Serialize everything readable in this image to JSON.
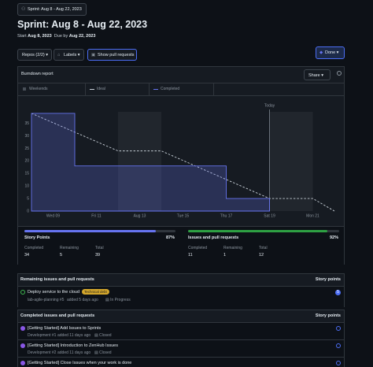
{
  "header": {
    "sprint_button": "Sprint: Aug 8 - Aug 22, 2023",
    "title": "Sprint: Aug 8 - Aug 22, 2023",
    "start_label": "Start",
    "start_date": "Aug 8, 2023",
    "due_label": "Due by",
    "due_date": "Aug 22, 2023"
  },
  "filters": [
    "Repos (2/2)",
    "Labels",
    "Show pull requests"
  ],
  "status_button": "Done",
  "report": {
    "title": "Burndown report",
    "share": "Share"
  },
  "chart_data": {
    "type": "line",
    "weekends": {
      "name": "Weekends",
      "color": "#21262d",
      "ranges": [
        [
          12,
          14
        ],
        [
          19,
          21
        ]
      ]
    },
    "today": {
      "label": "Today",
      "x": 19
    },
    "series": [
      {
        "name": "Ideal",
        "color": "#c9d1d9",
        "dashed": true,
        "x": [
          8,
          12,
          14,
          19,
          21,
          22
        ],
        "values": [
          39,
          24,
          24,
          5,
          5,
          0
        ]
      },
      {
        "name": "Completed",
        "color": "#6674f0",
        "area": true,
        "x": [
          8,
          10,
          10,
          17,
          17,
          19
        ],
        "values": [
          39,
          39,
          18,
          18,
          5,
          5
        ]
      }
    ],
    "xlim": [
      8,
      22
    ],
    "xticks": [
      {
        "value": 9,
        "label": "Wed 09"
      },
      {
        "value": 11,
        "label": "Fri 11"
      },
      {
        "value": 13,
        "label": "Aug 13"
      },
      {
        "value": 15,
        "label": "Tue 15"
      },
      {
        "value": 17,
        "label": "Thu 17"
      },
      {
        "value": 19,
        "label": "Sat 19"
      },
      {
        "value": 21,
        "label": "Mon 21"
      }
    ],
    "ylim": [
      0,
      44
    ],
    "yticks": [
      0,
      5,
      10,
      15,
      20,
      25,
      30,
      35
    ]
  },
  "stats": [
    {
      "title": "Story Points",
      "percent": {
        "value": 87,
        "label": "87%"
      },
      "color": "#6674f0",
      "fields": [
        {
          "label": "Completed",
          "value": 34
        },
        {
          "label": "Remaining",
          "value": 5
        },
        {
          "label": "Total",
          "value": 39
        }
      ]
    },
    {
      "title": "Issues and pull requests",
      "percent": {
        "value": 92,
        "label": "92%"
      },
      "color": "#2ea043",
      "fields": [
        {
          "label": "Completed",
          "value": 11
        },
        {
          "label": "Remaining",
          "value": 1
        },
        {
          "label": "Total",
          "value": 12
        }
      ]
    }
  ],
  "remaining": {
    "title": "Remaining issues and pull requests",
    "points_header": "Story points",
    "items": [
      {
        "title": "Deploy service to the cloud",
        "label": "Technical debt",
        "ref": "lab-agile-planning #5",
        "added": "added 5 days ago",
        "status": "In Progress",
        "points": 5
      }
    ]
  },
  "completed": {
    "title": "Completed issues and pull requests",
    "points_header": "Story points",
    "items": [
      {
        "title": "[Getting Started] Add Issues to Sprints",
        "ref": "Development #1",
        "added": "added 11 days ago",
        "status": "Closed"
      },
      {
        "title": "[Getting Started] Introduction to ZenHub Issues",
        "ref": "Development #2",
        "added": "added 11 days ago",
        "status": "Closed"
      },
      {
        "title": "[Getting Started] Close Issues when your work is done"
      }
    ]
  }
}
